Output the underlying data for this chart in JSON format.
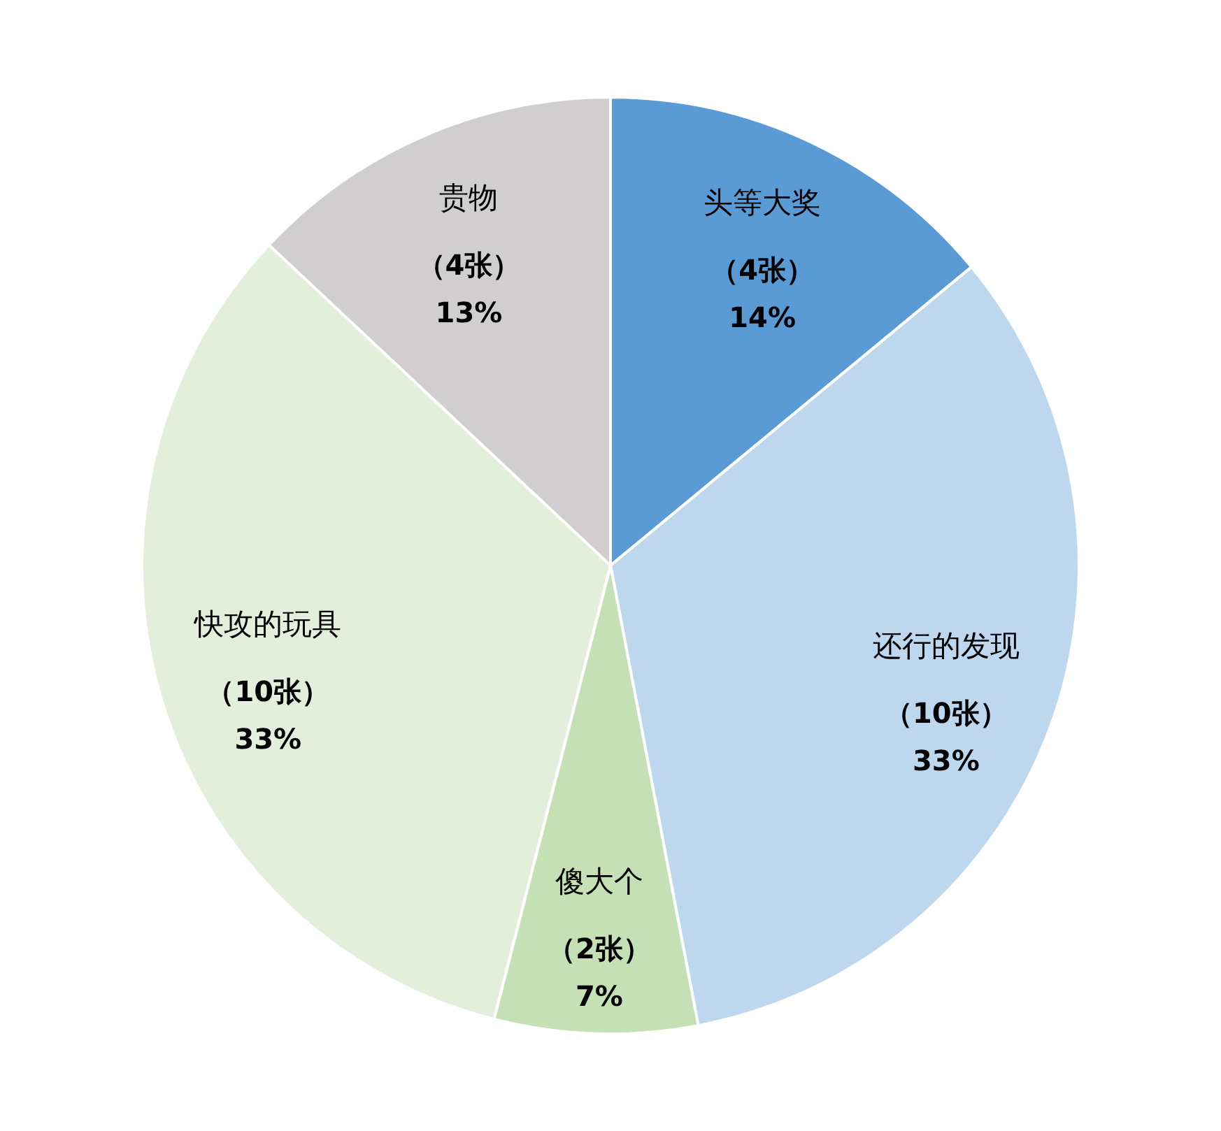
{
  "chart_data": {
    "type": "pie",
    "categories": [
      "头等大奖",
      "还行的发现",
      "傻大个",
      "快攻的玩具",
      "贵物"
    ],
    "values": [
      14,
      33,
      7,
      33,
      13
    ],
    "colors": [
      "#5b9bd5",
      "#bdd7ee",
      "#c5e0b4",
      "#e2efda",
      "#d0cece"
    ],
    "value_labels": [
      "（4张）\n14%",
      "（10张）\n33%",
      "（2张）\n7%",
      "（10张）\n33%",
      "（4张）\n13%"
    ]
  }
}
